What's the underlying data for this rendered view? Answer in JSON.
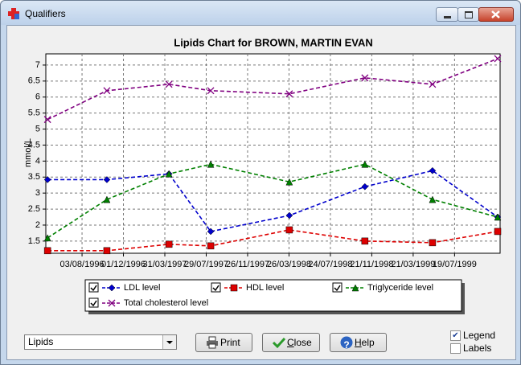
{
  "window": {
    "title": "Qualifiers"
  },
  "chart_data": {
    "type": "line",
    "title": "Lipids Chart for BROWN, MARTIN EVAN",
    "y_label": "mmol/L",
    "x": [
      "1996-04-25",
      "1996-10-14",
      "1997-04-12",
      "1997-08-11",
      "1998-03-27",
      "1998-11-01",
      "1999-05-16",
      "1999-11-21"
    ],
    "xlim": [
      "1996-04-20",
      "1999-11-28"
    ],
    "xticks": [
      {
        "value": "1996-08-03",
        "label": "03/08/1996"
      },
      {
        "value": "1996-12-01",
        "label": "01/12/1996"
      },
      {
        "value": "1997-03-31",
        "label": "31/03/1997"
      },
      {
        "value": "1997-07-29",
        "label": "29/07/1997"
      },
      {
        "value": "1997-11-26",
        "label": "26/11/1997"
      },
      {
        "value": "1998-03-26",
        "label": "26/03/1998"
      },
      {
        "value": "1998-07-24",
        "label": "24/07/1998"
      },
      {
        "value": "1998-11-21",
        "label": "21/11/1998"
      },
      {
        "value": "1999-03-21",
        "label": "21/03/1999"
      },
      {
        "value": "1999-07-19",
        "label": "19/07/1999"
      }
    ],
    "ylim": [
      1.12,
      7.35
    ],
    "yticks": [
      1.5,
      2,
      2.5,
      3,
      3.5,
      4,
      4.5,
      5,
      5.5,
      6,
      6.5,
      7
    ],
    "grid": true,
    "series": [
      {
        "name": "LDL level",
        "color": "#0000cc",
        "marker": "diamond",
        "visible": true,
        "values": [
          3.42,
          3.42,
          3.6,
          1.8,
          2.3,
          3.2,
          3.7,
          2.25
        ]
      },
      {
        "name": "HDL level",
        "color": "#dd0000",
        "marker": "square",
        "visible": true,
        "values": [
          1.2,
          1.2,
          1.4,
          1.35,
          1.85,
          1.5,
          1.45,
          1.8
        ]
      },
      {
        "name": "Triglyceride level",
        "color": "#008000",
        "marker": "triangle",
        "visible": true,
        "values": [
          1.6,
          2.8,
          3.6,
          3.9,
          3.35,
          3.9,
          2.8,
          2.25
        ]
      },
      {
        "name": "Total cholesterol level",
        "color": "#800080",
        "marker": "x",
        "visible": true,
        "values": [
          5.3,
          6.2,
          6.4,
          6.2,
          6.1,
          6.6,
          6.4,
          7.2
        ]
      }
    ]
  },
  "controls": {
    "selector": "Lipids",
    "buttons": [
      "Print",
      "Close",
      "Help"
    ],
    "checkboxes": [
      {
        "label": "Legend",
        "checked": true
      },
      {
        "label": "Labels",
        "checked": false
      }
    ]
  }
}
